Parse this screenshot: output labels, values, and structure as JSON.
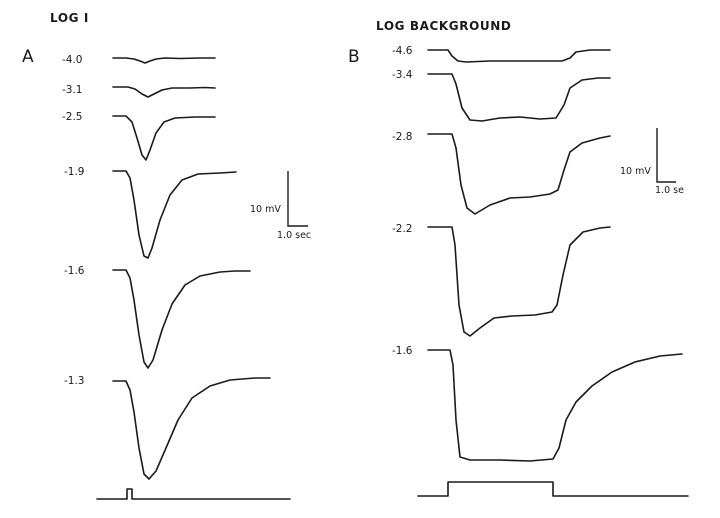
{
  "panel_a": {
    "letter": "A",
    "title": "LOG I",
    "trace_labels": [
      "-4.0",
      "-3.1",
      "-2.5",
      "-1.9",
      "-1.6",
      "-1.3"
    ],
    "scale_bar": {
      "voltage": "10 mV",
      "time": "1.0 sec"
    }
  },
  "panel_b": {
    "letter": "B",
    "title": "LOG BACKGROUND",
    "trace_labels": [
      "-4.6",
      "-3.4",
      "-2.8",
      "-2.2",
      "-1.6"
    ],
    "scale_bar": {
      "voltage": "10 mV",
      "time": "1.0 se"
    }
  }
}
